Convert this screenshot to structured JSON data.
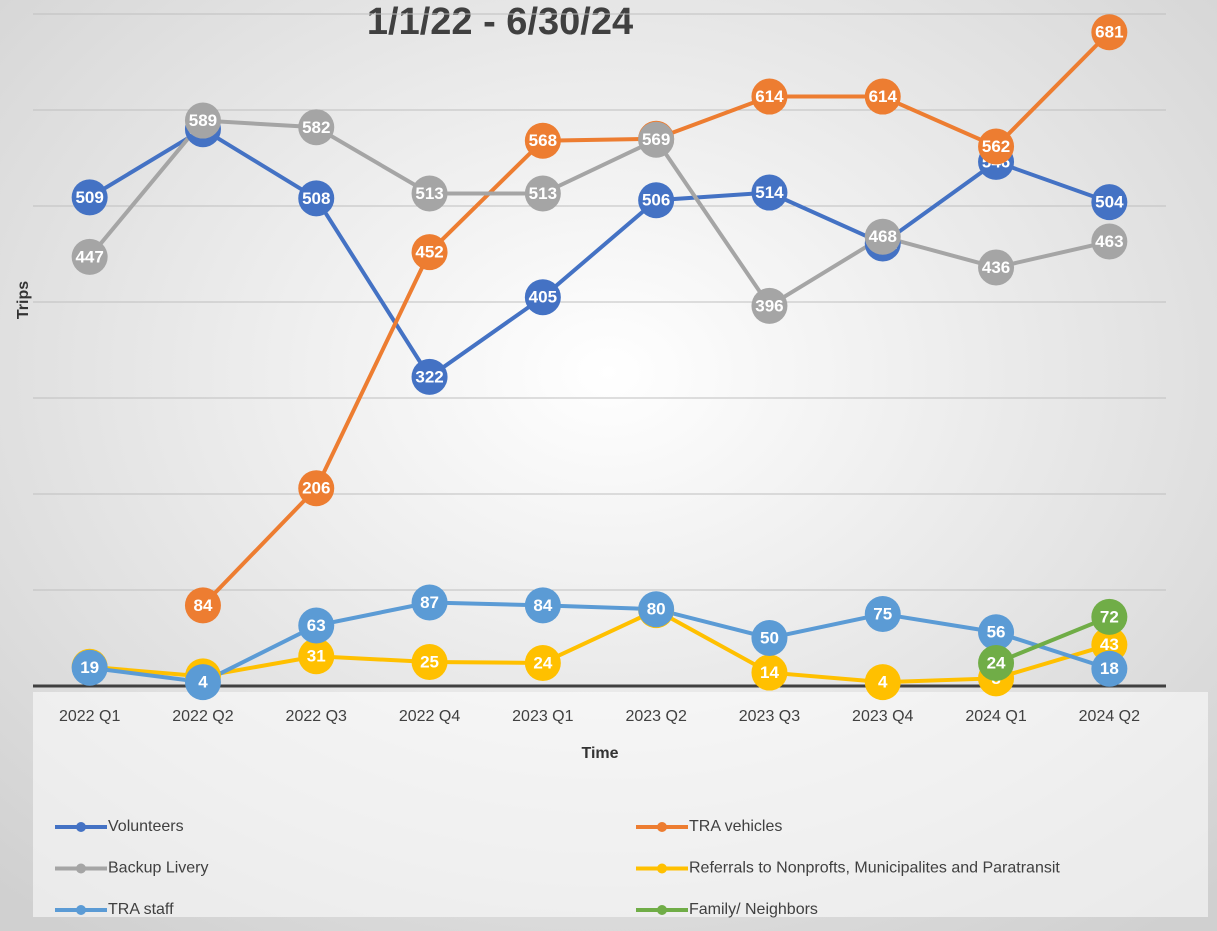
{
  "chart_data": {
    "type": "line",
    "title": "1/1/22 - 6/30/24",
    "y_label": "Trips",
    "x_label": "Time",
    "categories": [
      "2022 Q1",
      "2022 Q2",
      "2022 Q3",
      "2022 Q4",
      "2023 Q1",
      "2023 Q2",
      "2023 Q3",
      "2023 Q4",
      "2024 Q1",
      "2024 Q2"
    ],
    "series": [
      {
        "name": "Volunteers",
        "color": "#4472c4",
        "values": [
          509,
          580,
          508,
          322,
          405,
          506,
          514,
          461,
          546,
          504
        ]
      },
      {
        "name": "TRA vehicles",
        "color": "#ed7d31",
        "values": [
          null,
          84,
          206,
          452,
          568,
          570,
          614,
          614,
          562,
          681
        ]
      },
      {
        "name": "Backup Livery",
        "color": "#a5a5a5",
        "values": [
          447,
          589,
          582,
          513,
          513,
          569,
          396,
          468,
          436,
          463
        ]
      },
      {
        "name": "Referrals to Nonprofts, Municipalites and Paratransit",
        "color": "#ffc000",
        "values": [
          20,
          10,
          31,
          25,
          24,
          79,
          14,
          4,
          8,
          43
        ]
      },
      {
        "name": "TRA staff",
        "color": "#5b9bd5",
        "values": [
          19,
          4,
          63,
          87,
          84,
          80,
          50,
          75,
          56,
          18
        ]
      },
      {
        "name": "Family/ Neighbors",
        "color": "#70ad47",
        "values": [
          null,
          null,
          null,
          null,
          null,
          null,
          null,
          null,
          24,
          72
        ]
      }
    ],
    "ylim": [
      0,
      700
    ],
    "yticks": [
      0,
      100,
      200,
      300,
      400,
      500,
      600,
      700
    ],
    "grid": true
  }
}
